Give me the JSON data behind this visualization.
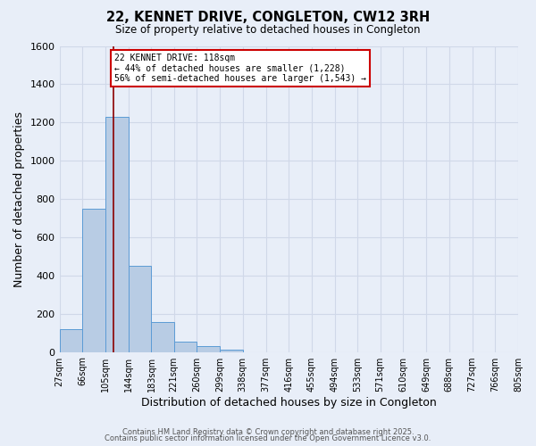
{
  "title": "22, KENNET DRIVE, CONGLETON, CW12 3RH",
  "subtitle": "Size of property relative to detached houses in Congleton",
  "xlabel": "Distribution of detached houses by size in Congleton",
  "ylabel": "Number of detached properties",
  "bar_labels": [
    "27sqm",
    "66sqm",
    "105sqm",
    "144sqm",
    "183sqm",
    "221sqm",
    "260sqm",
    "299sqm",
    "338sqm",
    "377sqm",
    "416sqm",
    "455sqm",
    "494sqm",
    "533sqm",
    "571sqm",
    "610sqm",
    "649sqm",
    "688sqm",
    "727sqm",
    "766sqm",
    "805sqm"
  ],
  "bar_values": [
    120,
    750,
    1230,
    450,
    155,
    55,
    33,
    10,
    0,
    0,
    0,
    0,
    0,
    0,
    0,
    0,
    0,
    0,
    0,
    0
  ],
  "bin_edges": [
    27,
    66,
    105,
    144,
    183,
    221,
    260,
    299,
    338,
    377,
    416,
    455,
    494,
    533,
    571,
    610,
    649,
    688,
    727,
    766,
    805
  ],
  "bar_color": "#b8cce4",
  "bar_edgecolor": "#5b9bd5",
  "grid_color": "#d0d8e8",
  "bg_color": "#e8eef8",
  "vline_x": 118,
  "vline_color": "#8b0000",
  "annotation_text": "22 KENNET DRIVE: 118sqm\n← 44% of detached houses are smaller (1,228)\n56% of semi-detached houses are larger (1,543) →",
  "annotation_box_color": "white",
  "annotation_box_edgecolor": "#cc0000",
  "ylim": [
    0,
    1600
  ],
  "yticks": [
    0,
    200,
    400,
    600,
    800,
    1000,
    1200,
    1400,
    1600
  ],
  "footer_line1": "Contains HM Land Registry data © Crown copyright and database right 2025.",
  "footer_line2": "Contains public sector information licensed under the Open Government Licence v3.0."
}
